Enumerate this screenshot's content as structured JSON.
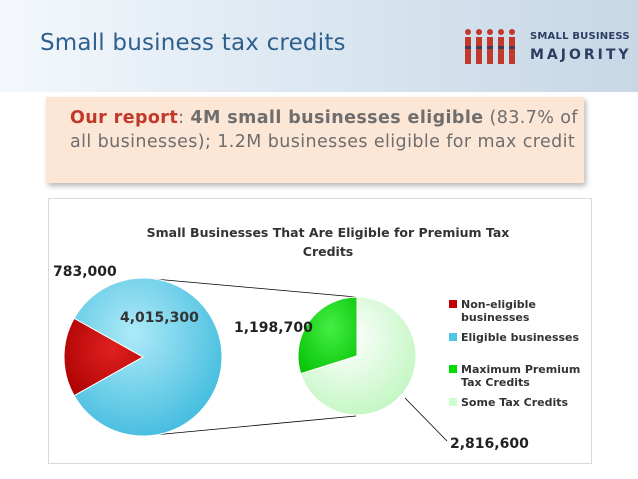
{
  "slide": {
    "title": "Small business tax credits",
    "logo_top": "SMALL BUSINESS",
    "logo_bottom": "MAJORITY",
    "callout": {
      "p1": "Our report",
      "p2": ": ",
      "p3": "4M small businesses eligible",
      "p4": " (83.7% of  all businesses); 1.2M businesses eligible for max credit"
    }
  },
  "colors": {
    "non_eligible": "#c00000",
    "eligible": "#4bc6e8",
    "max_credits": "#00dd00",
    "some_credits": "#ccffcc"
  },
  "chart_data": {
    "type": "pie",
    "title_line1": "Small Businesses That Are Eligible for Premium Tax",
    "title_line2": "Credits",
    "main_pie": {
      "slices": [
        {
          "name": "Non-eligible businesses",
          "value": 783000,
          "label": "783,000"
        },
        {
          "name": "Eligible businesses",
          "value": 4015300,
          "label": "4,015,300"
        }
      ]
    },
    "sub_pie": {
      "of": "Eligible businesses",
      "slices": [
        {
          "name": "Maximum Premium Tax Credits",
          "value": 1198700,
          "label": "1,198,700"
        },
        {
          "name": "Some Tax Credits",
          "value": 2816600,
          "label": "2,816,600"
        }
      ]
    },
    "legend": {
      "placement": "right",
      "items": [
        {
          "line1": "Non-eligible",
          "line2": "businesses",
          "color_key": "non_eligible"
        },
        {
          "line1": "Eligible businesses",
          "line2": "",
          "color_key": "eligible"
        },
        {
          "line1": "Maximum Premium",
          "line2": "Tax Credits",
          "color_key": "max_credits"
        },
        {
          "line1": "Some Tax Credits",
          "line2": "",
          "color_key": "some_credits"
        }
      ]
    }
  }
}
